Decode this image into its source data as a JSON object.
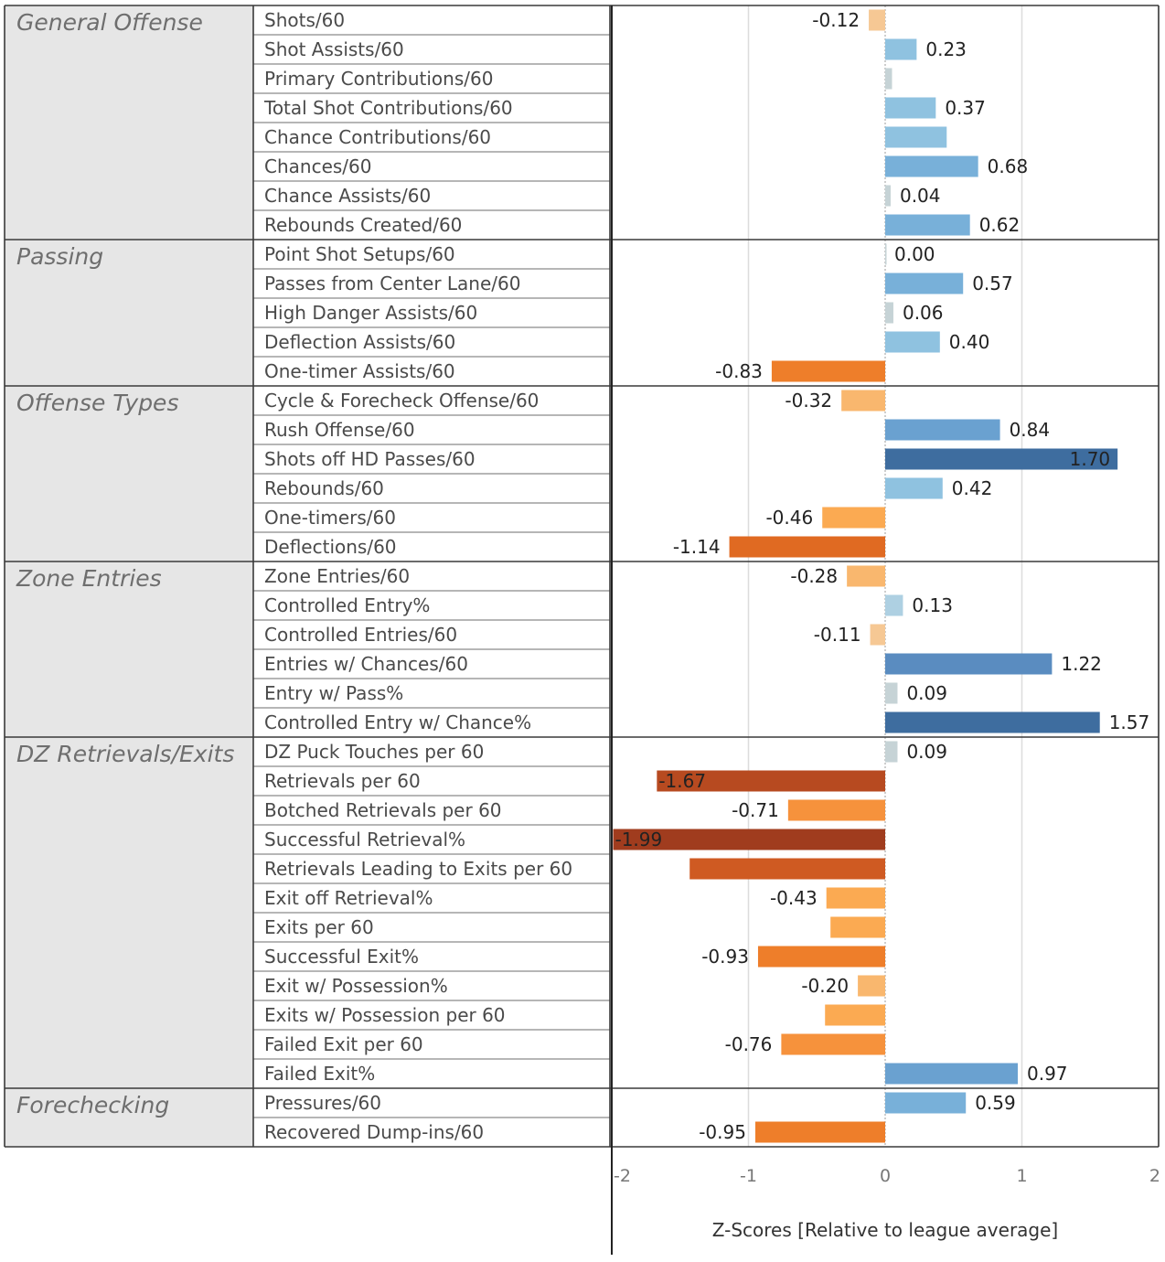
{
  "chart_data": {
    "type": "bar",
    "orientation": "horizontal",
    "xlabel": "Z-Scores [Relative to league average]",
    "xlim": [
      -2,
      2
    ],
    "xticks": [
      "-2",
      "-1",
      "0",
      "1",
      "2"
    ],
    "grid": true,
    "groups": [
      {
        "name": "General Offense",
        "metrics": [
          {
            "name": "Shots/60",
            "value": -0.12,
            "label": "-0.12"
          },
          {
            "name": "Shot Assists/60",
            "value": 0.23,
            "label": "0.23"
          },
          {
            "name": "Primary Contributions/60",
            "value": 0.05,
            "label": ""
          },
          {
            "name": "Total Shot Contributions/60",
            "value": 0.37,
            "label": "0.37"
          },
          {
            "name": "Chance Contributions/60",
            "value": 0.45,
            "label": ""
          },
          {
            "name": "Chances/60",
            "value": 0.68,
            "label": "0.68"
          },
          {
            "name": "Chance Assists/60",
            "value": 0.04,
            "label": "0.04"
          },
          {
            "name": "Rebounds Created/60",
            "value": 0.62,
            "label": "0.62"
          }
        ]
      },
      {
        "name": "Passing",
        "metrics": [
          {
            "name": "Point Shot Setups/60",
            "value": 0.0,
            "label": "0.00"
          },
          {
            "name": "Passes from Center Lane/60",
            "value": 0.57,
            "label": "0.57"
          },
          {
            "name": "High Danger Assists/60",
            "value": 0.06,
            "label": "0.06"
          },
          {
            "name": "Deflection Assists/60",
            "value": 0.4,
            "label": "0.40"
          },
          {
            "name": "One-timer Assists/60",
            "value": -0.83,
            "label": "-0.83"
          }
        ]
      },
      {
        "name": "Offense Types",
        "metrics": [
          {
            "name": "Cycle & Forecheck Offense/60",
            "value": -0.32,
            "label": "-0.32"
          },
          {
            "name": "Rush Offense/60",
            "value": 0.84,
            "label": "0.84"
          },
          {
            "name": "Shots off HD Passes/60",
            "value": 1.7,
            "label": "1.70"
          },
          {
            "name": "Rebounds/60",
            "value": 0.42,
            "label": "0.42"
          },
          {
            "name": "One-timers/60",
            "value": -0.46,
            "label": "-0.46"
          },
          {
            "name": "Deflections/60",
            "value": -1.14,
            "label": "-1.14"
          }
        ]
      },
      {
        "name": "Zone Entries",
        "metrics": [
          {
            "name": "Zone Entries/60",
            "value": -0.28,
            "label": "-0.28"
          },
          {
            "name": "Controlled Entry%",
            "value": 0.13,
            "label": "0.13"
          },
          {
            "name": "Controlled Entries/60",
            "value": -0.11,
            "label": "-0.11"
          },
          {
            "name": "Entries w/ Chances/60",
            "value": 1.22,
            "label": "1.22"
          },
          {
            "name": "Entry w/ Pass%",
            "value": 0.09,
            "label": "0.09"
          },
          {
            "name": "Controlled Entry w/ Chance%",
            "value": 1.57,
            "label": "1.57"
          }
        ]
      },
      {
        "name": "DZ Retrievals/Exits",
        "metrics": [
          {
            "name": "DZ Puck Touches per 60",
            "value": 0.09,
            "label": "0.09"
          },
          {
            "name": "Retrievals per 60",
            "value": -1.67,
            "label": "-1.67"
          },
          {
            "name": "Botched Retrievals per 60",
            "value": -0.71,
            "label": "-0.71"
          },
          {
            "name": "Successful Retrieval%",
            "value": -1.99,
            "label": "-1.99"
          },
          {
            "name": "Retrievals Leading to Exits per 60",
            "value": -1.43,
            "label": ""
          },
          {
            "name": "Exit off Retrieval%",
            "value": -0.43,
            "label": "-0.43"
          },
          {
            "name": "Exits per 60",
            "value": -0.4,
            "label": ""
          },
          {
            "name": "Successful Exit%",
            "value": -0.93,
            "label": "-0.93"
          },
          {
            "name": "Exit w/ Possession%",
            "value": -0.2,
            "label": "-0.20"
          },
          {
            "name": "Exits w/ Possession per 60",
            "value": -0.44,
            "label": ""
          },
          {
            "name": "Failed Exit per 60",
            "value": -0.76,
            "label": "-0.76"
          },
          {
            "name": "Failed Exit%",
            "value": 0.97,
            "label": "0.97"
          }
        ]
      },
      {
        "name": "Forechecking",
        "metrics": [
          {
            "name": "Pressures/60",
            "value": 0.59,
            "label": "0.59"
          },
          {
            "name": "Recovered Dump-ins/60",
            "value": -0.95,
            "label": "-0.95"
          }
        ]
      }
    ]
  }
}
